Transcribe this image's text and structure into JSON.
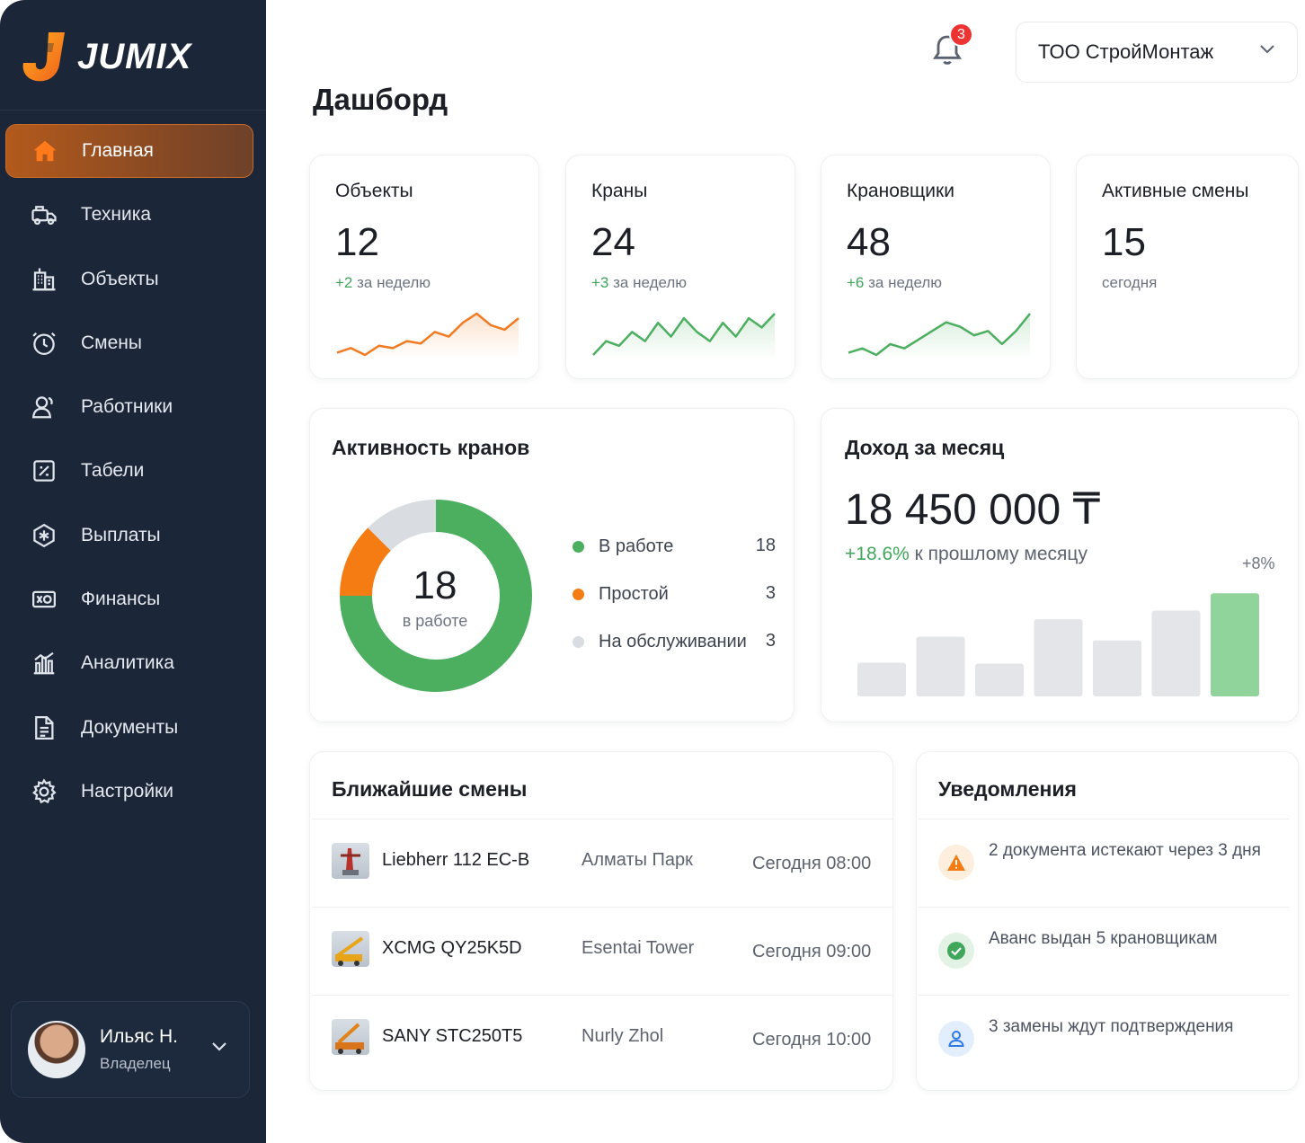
{
  "app": {
    "brand": "JUMIX"
  },
  "sidebar": {
    "items": [
      {
        "label": "Главная",
        "icon": "home-icon",
        "active": true
      },
      {
        "label": "Техника",
        "icon": "truck-icon"
      },
      {
        "label": "Объекты",
        "icon": "building-icon"
      },
      {
        "label": "Смены",
        "icon": "clock-icon"
      },
      {
        "label": "Работники",
        "icon": "user-icon"
      },
      {
        "label": "Табели",
        "icon": "timesheet-icon"
      },
      {
        "label": "Выплаты",
        "icon": "payout-icon"
      },
      {
        "label": "Финансы",
        "icon": "finance-icon"
      },
      {
        "label": "Аналитика",
        "icon": "analytics-icon"
      },
      {
        "label": "Документы",
        "icon": "document-icon"
      },
      {
        "label": "Настройки",
        "icon": "gear-icon"
      }
    ],
    "user": {
      "name": "Ильяс Н.",
      "role": "Владелец"
    }
  },
  "header": {
    "notification_count": "3",
    "company": "ТОО СтройМонтаж"
  },
  "page": {
    "title": "Дашборд"
  },
  "stats": [
    {
      "label": "Объекты",
      "value": "12",
      "delta": "+2",
      "sub": "за неделю",
      "color": "#f07b22",
      "spark": [
        3,
        5,
        2,
        6,
        5,
        8,
        7,
        12,
        10,
        16,
        20,
        15,
        13,
        18
      ]
    },
    {
      "label": "Краны",
      "value": "24",
      "delta": "+3",
      "sub": "за неделю",
      "color": "#4caf5f",
      "spark": [
        4,
        10,
        8,
        14,
        10,
        18,
        12,
        20,
        14,
        10,
        18,
        12,
        20,
        16,
        22
      ]
    },
    {
      "label": "Крановщики",
      "value": "48",
      "delta": "+6",
      "sub": "за неделю",
      "color": "#4caf5f",
      "spark": [
        4,
        6,
        3,
        8,
        6,
        10,
        14,
        18,
        16,
        12,
        14,
        8,
        14,
        22
      ]
    },
    {
      "label": "Активные смены",
      "value": "15",
      "delta": "",
      "sub": "сегодня",
      "color": "#4caf5f",
      "spark": []
    }
  ],
  "crane_activity": {
    "title": "Активность кранов",
    "center_value": "18",
    "center_label": "в работе",
    "segments": [
      {
        "label": "В работе",
        "value": 18,
        "display": "18",
        "color": "#4caf5f"
      },
      {
        "label": "Простой",
        "value": 3,
        "display": "3",
        "color": "#f57c12"
      },
      {
        "label": "На обслуживании",
        "value": 3,
        "display": "3",
        "color": "#d9dce0"
      }
    ]
  },
  "income": {
    "title": "Доход за месяц",
    "value": "18 450 000 ₸",
    "delta": "+18.6%",
    "sub": "к прошлому месяцу",
    "last_bar_label": "+8%",
    "bars": [
      35,
      62,
      34,
      80,
      58,
      89,
      107
    ],
    "highlight_color": "#4caf5f"
  },
  "shifts": {
    "title": "Ближайшие смены",
    "rows": [
      {
        "crane": "Liebherr 112 EC-B",
        "location": "Алматы Парк",
        "time": "Сегодня 08:00"
      },
      {
        "crane": "XCMG QY25K5D",
        "location": "Esentai Tower",
        "time": "Сегодня 09:00"
      },
      {
        "crane": "SANY STC250T5",
        "location": "Nurly Zhol",
        "time": "Сегодня 10:00"
      }
    ]
  },
  "notifications": {
    "title": "Уведомления",
    "items": [
      {
        "text": "2 документа истекают через 3 дня",
        "icon": "warning-icon",
        "color": "#f57c12"
      },
      {
        "text": "Аванс выдан 5 крановщикам",
        "icon": "check-icon",
        "color": "#3fa65a"
      },
      {
        "text": "3 замены ждут подтверждения",
        "icon": "person-icon",
        "color": "#2f7ae5"
      }
    ]
  }
}
